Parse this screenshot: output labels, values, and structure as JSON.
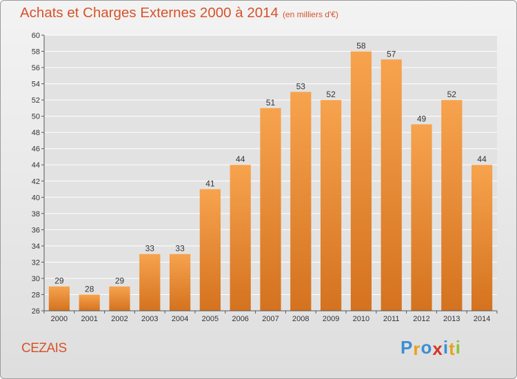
{
  "header": {
    "title": "Achats et Charges Externes 2000 à 2014",
    "subtitle": "(en milliers d'€)"
  },
  "footer": {
    "commune": "CEZAIS",
    "logo": "Proxiti"
  },
  "colors": {
    "title": "#d6522a",
    "bar_light": "#f7a34e",
    "bar_dark": "#d4721f",
    "logo_letters": [
      "#3a8fd3",
      "#e8a11d",
      "#3a8fd3",
      "#d6322a",
      "#3a8fd3",
      "#e8a11d",
      "#8cc43c"
    ]
  },
  "chart_data": {
    "type": "bar",
    "title": "Achats et Charges Externes 2000 à 2014",
    "subtitle": "(en milliers d'€)",
    "categories": [
      "2000",
      "2001",
      "2002",
      "2003",
      "2004",
      "2005",
      "2006",
      "2007",
      "2008",
      "2009",
      "2010",
      "2011",
      "2012",
      "2013",
      "2014"
    ],
    "values": [
      29,
      28,
      29,
      33,
      33,
      41,
      44,
      51,
      53,
      52,
      58,
      57,
      49,
      52,
      44
    ],
    "ylim": [
      26,
      60
    ],
    "yticks": [
      26,
      28,
      30,
      32,
      34,
      36,
      38,
      40,
      42,
      44,
      46,
      48,
      50,
      52,
      54,
      56,
      58,
      60
    ],
    "grid": true,
    "xlabel": "",
    "ylabel": ""
  }
}
